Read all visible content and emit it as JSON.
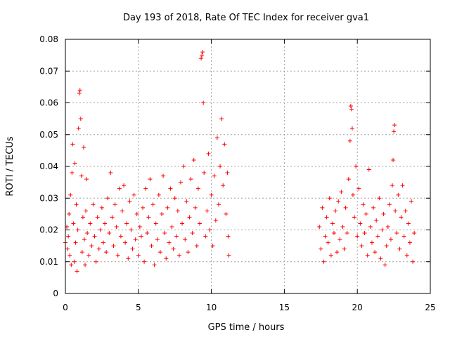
{
  "chart_data": {
    "type": "scatter",
    "title": "Day 193 of 2018, Rate Of TEC Index for receiver gva1",
    "xlabel": "GPS time / hours",
    "ylabel": "ROTI / TECUs",
    "xlim": [
      0,
      25
    ],
    "ylim": [
      0,
      0.08
    ],
    "xticks": [
      "0",
      "5",
      "10",
      "15",
      "20",
      "25"
    ],
    "yticks": [
      "0",
      "0.01",
      "0.02",
      "0.03",
      "0.04",
      "0.05",
      "0.06",
      "0.07",
      "0.08"
    ],
    "grid": true,
    "marker": "+",
    "color": "#ff0000",
    "series": [
      {
        "points": [
          [
            0.0,
            0.016
          ],
          [
            0.1,
            0.021
          ],
          [
            0.15,
            0.014
          ],
          [
            0.2,
            0.018
          ],
          [
            0.25,
            0.025
          ],
          [
            0.3,
            0.012
          ],
          [
            0.35,
            0.031
          ],
          [
            0.4,
            0.009
          ],
          [
            0.45,
            0.038
          ],
          [
            0.5,
            0.047
          ],
          [
            0.55,
            0.022
          ],
          [
            0.6,
            0.01
          ],
          [
            0.65,
            0.041
          ],
          [
            0.7,
            0.016
          ],
          [
            0.75,
            0.028
          ],
          [
            0.8,
            0.007
          ],
          [
            0.85,
            0.02
          ],
          [
            0.9,
            0.052
          ],
          [
            0.95,
            0.063
          ],
          [
            1.0,
            0.064
          ],
          [
            1.05,
            0.055
          ],
          [
            1.1,
            0.037
          ],
          [
            1.15,
            0.013
          ],
          [
            1.2,
            0.024
          ],
          [
            1.25,
            0.046
          ],
          [
            1.3,
            0.017
          ],
          [
            1.35,
            0.009
          ],
          [
            1.4,
            0.026
          ],
          [
            1.45,
            0.036
          ],
          [
            1.5,
            0.019
          ],
          [
            1.6,
            0.012
          ],
          [
            1.7,
            0.022
          ],
          [
            1.8,
            0.015
          ],
          [
            1.9,
            0.028
          ],
          [
            2.0,
            0.018
          ],
          [
            2.1,
            0.01
          ],
          [
            2.2,
            0.024
          ],
          [
            2.3,
            0.014
          ],
          [
            2.4,
            0.02
          ],
          [
            2.5,
            0.027
          ],
          [
            2.6,
            0.016
          ],
          [
            2.7,
            0.022
          ],
          [
            2.8,
            0.013
          ],
          [
            2.9,
            0.03
          ],
          [
            3.0,
            0.019
          ],
          [
            3.1,
            0.038
          ],
          [
            3.2,
            0.024
          ],
          [
            3.3,
            0.015
          ],
          [
            3.4,
            0.028
          ],
          [
            3.5,
            0.021
          ],
          [
            3.6,
            0.012
          ],
          [
            3.7,
            0.033
          ],
          [
            3.8,
            0.018
          ],
          [
            3.9,
            0.026
          ],
          [
            4.0,
            0.034
          ],
          [
            4.1,
            0.016
          ],
          [
            4.2,
            0.022
          ],
          [
            4.3,
            0.011
          ],
          [
            4.4,
            0.029
          ],
          [
            4.5,
            0.02
          ],
          [
            4.6,
            0.014
          ],
          [
            4.7,
            0.031
          ],
          [
            4.8,
            0.017
          ],
          [
            4.9,
            0.025
          ],
          [
            5.0,
            0.012
          ],
          [
            5.1,
            0.021
          ],
          [
            5.2,
            0.018
          ],
          [
            5.3,
            0.027
          ],
          [
            5.4,
            0.01
          ],
          [
            5.5,
            0.033
          ],
          [
            5.6,
            0.019
          ],
          [
            5.7,
            0.024
          ],
          [
            5.8,
            0.036
          ],
          [
            5.9,
            0.015
          ],
          [
            6.0,
            0.028
          ],
          [
            6.1,
            0.009
          ],
          [
            6.2,
            0.022
          ],
          [
            6.3,
            0.017
          ],
          [
            6.4,
            0.031
          ],
          [
            6.5,
            0.013
          ],
          [
            6.6,
            0.025
          ],
          [
            6.7,
            0.037
          ],
          [
            6.8,
            0.019
          ],
          [
            6.9,
            0.011
          ],
          [
            7.0,
            0.027
          ],
          [
            7.1,
            0.016
          ],
          [
            7.2,
            0.033
          ],
          [
            7.3,
            0.021
          ],
          [
            7.4,
            0.014
          ],
          [
            7.5,
            0.03
          ],
          [
            7.6,
            0.018
          ],
          [
            7.7,
            0.026
          ],
          [
            7.8,
            0.012
          ],
          [
            7.9,
            0.035
          ],
          [
            8.0,
            0.022
          ],
          [
            8.1,
            0.04
          ],
          [
            8.2,
            0.017
          ],
          [
            8.3,
            0.029
          ],
          [
            8.4,
            0.013
          ],
          [
            8.5,
            0.024
          ],
          [
            8.6,
            0.036
          ],
          [
            8.7,
            0.019
          ],
          [
            8.8,
            0.042
          ],
          [
            8.9,
            0.027
          ],
          [
            9.0,
            0.015
          ],
          [
            9.1,
            0.033
          ],
          [
            9.2,
            0.022
          ],
          [
            9.3,
            0.074
          ],
          [
            9.35,
            0.075
          ],
          [
            9.4,
            0.076
          ],
          [
            9.45,
            0.06
          ],
          [
            9.5,
            0.038
          ],
          [
            9.6,
            0.018
          ],
          [
            9.7,
            0.026
          ],
          [
            9.8,
            0.044
          ],
          [
            9.9,
            0.02
          ],
          [
            10.0,
            0.031
          ],
          [
            10.1,
            0.015
          ],
          [
            10.2,
            0.037
          ],
          [
            10.3,
            0.023
          ],
          [
            10.4,
            0.049
          ],
          [
            10.5,
            0.028
          ],
          [
            10.6,
            0.04
          ],
          [
            10.7,
            0.055
          ],
          [
            10.8,
            0.034
          ],
          [
            10.9,
            0.047
          ],
          [
            11.0,
            0.025
          ],
          [
            11.1,
            0.038
          ],
          [
            11.15,
            0.018
          ],
          [
            11.2,
            0.012
          ],
          [
            17.4,
            0.021
          ],
          [
            17.5,
            0.014
          ],
          [
            17.6,
            0.027
          ],
          [
            17.7,
            0.01
          ],
          [
            17.8,
            0.018
          ],
          [
            17.9,
            0.024
          ],
          [
            18.0,
            0.016
          ],
          [
            18.1,
            0.03
          ],
          [
            18.2,
            0.012
          ],
          [
            18.3,
            0.022
          ],
          [
            18.4,
            0.019
          ],
          [
            18.5,
            0.026
          ],
          [
            18.6,
            0.013
          ],
          [
            18.7,
            0.029
          ],
          [
            18.8,
            0.017
          ],
          [
            18.9,
            0.032
          ],
          [
            19.0,
            0.021
          ],
          [
            19.1,
            0.014
          ],
          [
            19.2,
            0.027
          ],
          [
            19.3,
            0.019
          ],
          [
            19.4,
            0.036
          ],
          [
            19.5,
            0.048
          ],
          [
            19.55,
            0.059
          ],
          [
            19.6,
            0.058
          ],
          [
            19.65,
            0.052
          ],
          [
            19.7,
            0.031
          ],
          [
            19.8,
            0.024
          ],
          [
            19.9,
            0.04
          ],
          [
            20.0,
            0.018
          ],
          [
            20.1,
            0.033
          ],
          [
            20.2,
            0.022
          ],
          [
            20.3,
            0.015
          ],
          [
            20.4,
            0.028
          ],
          [
            20.5,
            0.019
          ],
          [
            20.6,
            0.025
          ],
          [
            20.7,
            0.012
          ],
          [
            20.8,
            0.039
          ],
          [
            20.9,
            0.021
          ],
          [
            21.0,
            0.016
          ],
          [
            21.1,
            0.027
          ],
          [
            21.2,
            0.013
          ],
          [
            21.3,
            0.023
          ],
          [
            21.4,
            0.018
          ],
          [
            21.5,
            0.03
          ],
          [
            21.6,
            0.011
          ],
          [
            21.7,
            0.02
          ],
          [
            21.8,
            0.025
          ],
          [
            21.9,
            0.009
          ],
          [
            22.0,
            0.015
          ],
          [
            22.1,
            0.021
          ],
          [
            22.2,
            0.028
          ],
          [
            22.3,
            0.017
          ],
          [
            22.4,
            0.034
          ],
          [
            22.45,
            0.042
          ],
          [
            22.5,
            0.051
          ],
          [
            22.55,
            0.053
          ],
          [
            22.6,
            0.026
          ],
          [
            22.7,
            0.019
          ],
          [
            22.8,
            0.031
          ],
          [
            22.9,
            0.014
          ],
          [
            23.0,
            0.024
          ],
          [
            23.1,
            0.034
          ],
          [
            23.2,
            0.018
          ],
          [
            23.3,
            0.026
          ],
          [
            23.4,
            0.012
          ],
          [
            23.5,
            0.022
          ],
          [
            23.6,
            0.016
          ],
          [
            23.7,
            0.029
          ],
          [
            23.8,
            0.01
          ],
          [
            23.9,
            0.019
          ]
        ]
      }
    ]
  }
}
